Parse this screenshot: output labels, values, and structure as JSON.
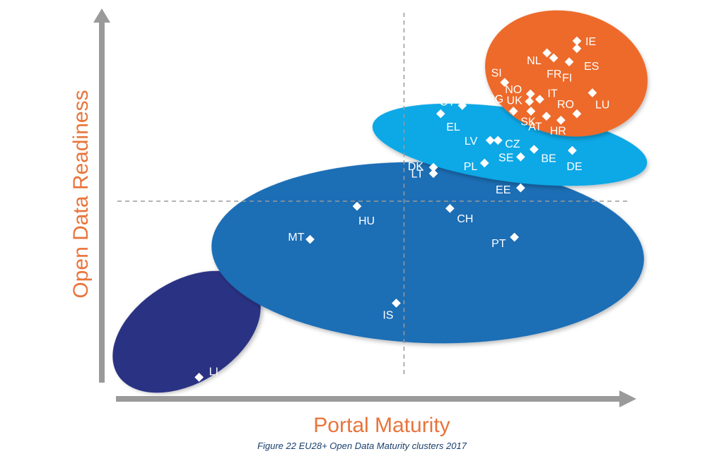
{
  "chart_data": {
    "type": "scatter",
    "xlabel": "Portal Maturity",
    "ylabel": "Open Data Readiness",
    "caption": "Figure 22 EU28+ Open Data Maturity clusters 2017",
    "colors": {
      "axis": "#9a9a9a",
      "axis_title": "#e8743b",
      "label": "#ffffff",
      "point": "#ffffff",
      "guide": "#9a9a9a"
    },
    "clusters": [
      {
        "name": "LI",
        "color": "#2b3383",
        "members": [
          "LI"
        ]
      },
      {
        "name": "MT",
        "color": "#1a6eb5",
        "members": [
          "HU",
          "MT",
          "IS",
          "CH",
          "PT",
          "DK",
          "LT"
        ]
      },
      {
        "name": "CY",
        "color": "#0ea8e6",
        "members": [
          "CY",
          "EL",
          "LV",
          "CZ",
          "SE",
          "BE",
          "DE",
          "PL",
          "EE"
        ]
      },
      {
        "name": "NL",
        "color": "#ed6a2c",
        "members": [
          "IE",
          "ES",
          "NL",
          "FR",
          "FI",
          "SI",
          "NO",
          "BG",
          "UK",
          "IT",
          "RO",
          "LU",
          "SK",
          "AT",
          "HR"
        ]
      }
    ],
    "points": [
      {
        "label": "IE",
        "x": 91.5,
        "y": 94.5
      },
      {
        "label": "ES",
        "x": 91.5,
        "y": 92.4
      },
      {
        "label": "NL",
        "x": 85.7,
        "y": 91.2
      },
      {
        "label": "FR",
        "x": 87.0,
        "y": 89.8
      },
      {
        "label": "FI",
        "x": 90.0,
        "y": 88.7
      },
      {
        "label": "SI",
        "x": 77.5,
        "y": 83.0
      },
      {
        "label": "NO",
        "x": 82.5,
        "y": 79.8
      },
      {
        "label": "UK",
        "x": 82.3,
        "y": 77.7
      },
      {
        "label": "IT",
        "x": 84.3,
        "y": 78.3
      },
      {
        "label": "BG",
        "x": 79.2,
        "y": 75.0
      },
      {
        "label": "LU",
        "x": 94.5,
        "y": 80.1
      },
      {
        "label": "RO",
        "x": 91.5,
        "y": 74.3
      },
      {
        "label": "SK",
        "x": 82.6,
        "y": 75.0
      },
      {
        "label": "AT",
        "x": 85.6,
        "y": 73.6
      },
      {
        "label": "HR",
        "x": 88.4,
        "y": 72.5
      },
      {
        "label": "CY",
        "x": 69.3,
        "y": 76.6
      },
      {
        "label": "EL",
        "x": 65.1,
        "y": 74.3
      },
      {
        "label": "LV",
        "x": 74.7,
        "y": 66.9
      },
      {
        "label": "CZ",
        "x": 76.2,
        "y": 66.9
      },
      {
        "label": "BE",
        "x": 83.2,
        "y": 64.4
      },
      {
        "label": "DE",
        "x": 90.6,
        "y": 64.1
      },
      {
        "label": "SE",
        "x": 80.6,
        "y": 62.3
      },
      {
        "label": "PL",
        "x": 73.6,
        "y": 60.6
      },
      {
        "label": "DK",
        "x": 63.7,
        "y": 59.4
      },
      {
        "label": "LT",
        "x": 63.7,
        "y": 57.7
      },
      {
        "label": "EE",
        "x": 80.6,
        "y": 53.7
      },
      {
        "label": "CH",
        "x": 66.9,
        "y": 48.0
      },
      {
        "label": "HU",
        "x": 48.9,
        "y": 48.6
      },
      {
        "label": "PT",
        "x": 79.4,
        "y": 40.0
      },
      {
        "label": "MT",
        "x": 39.8,
        "y": 39.4
      },
      {
        "label": "IS",
        "x": 56.5,
        "y": 21.7
      },
      {
        "label": "LI",
        "x": 18.3,
        "y": 1.1
      }
    ],
    "xlim": [
      0,
      100
    ],
    "ylim": [
      0,
      100
    ],
    "x_guide": 58,
    "y_guide": 50,
    "grid": false,
    "legend": "none"
  }
}
